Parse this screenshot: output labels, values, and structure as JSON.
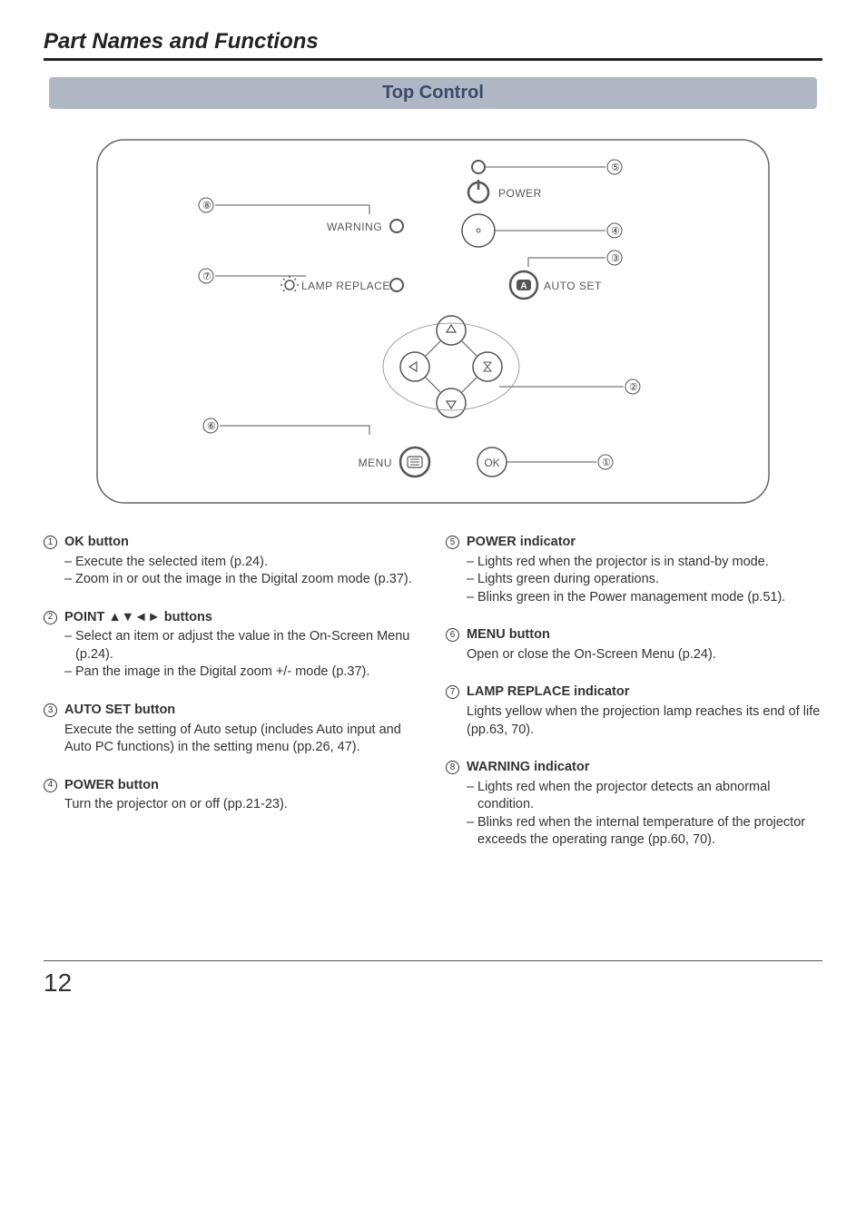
{
  "page": {
    "title": "Part Names and Functions",
    "section": "Top Control",
    "number": "12"
  },
  "diagram": {
    "labels": {
      "power": "POWER",
      "warning": "WARNING",
      "lamp_replace": "LAMP REPLACE",
      "auto_set": "AUTO SET",
      "menu": "MENU",
      "ok": "OK",
      "auto_badge": "A"
    },
    "callouts": {
      "c1": "①",
      "c2": "②",
      "c3": "③",
      "c4": "④",
      "c5": "⑤",
      "c6": "⑥",
      "c7": "⑦",
      "c8": "⑧"
    }
  },
  "left_column": [
    {
      "num": "①",
      "title": "OK button",
      "bullets": [
        "Execute the selected item (p.24).",
        "Zoom in or out the image in the Digital zoom mode (p.37)."
      ]
    },
    {
      "num": "②",
      "title": "POINT ▲▼◄► buttons",
      "bullets": [
        "Select an item or adjust the value in the On-Screen Menu (p.24).",
        "Pan the image in the Digital zoom +/- mode (p.37)."
      ]
    },
    {
      "num": "③",
      "title": "AUTO SET button",
      "desc": "Execute the setting of Auto setup (includes Auto input and Auto PC functions) in the setting menu (pp.26, 47)."
    },
    {
      "num": "④",
      "title": "POWER button",
      "desc": "Turn the projector on or off (pp.21-23)."
    }
  ],
  "right_column": [
    {
      "num": "⑤",
      "title": "POWER indicator",
      "bullets": [
        "Lights red when the projector is in stand-by mode.",
        "Lights green during operations.",
        "Blinks green in the Power management mode (p.51)."
      ]
    },
    {
      "num": "⑥",
      "title": "MENU button",
      "desc": "Open or close the On-Screen Menu (p.24)."
    },
    {
      "num": "⑦",
      "title": "LAMP REPLACE indicator",
      "desc": "Lights yellow when the projection lamp reaches its end of life (pp.63, 70)."
    },
    {
      "num": "⑧",
      "title": "WARNING indicator",
      "bullets": [
        "Lights red when the projector detects an abnormal condition.",
        "Blinks red when the internal temperature of the projector exceeds the operating range (pp.60, 70)."
      ]
    }
  ]
}
